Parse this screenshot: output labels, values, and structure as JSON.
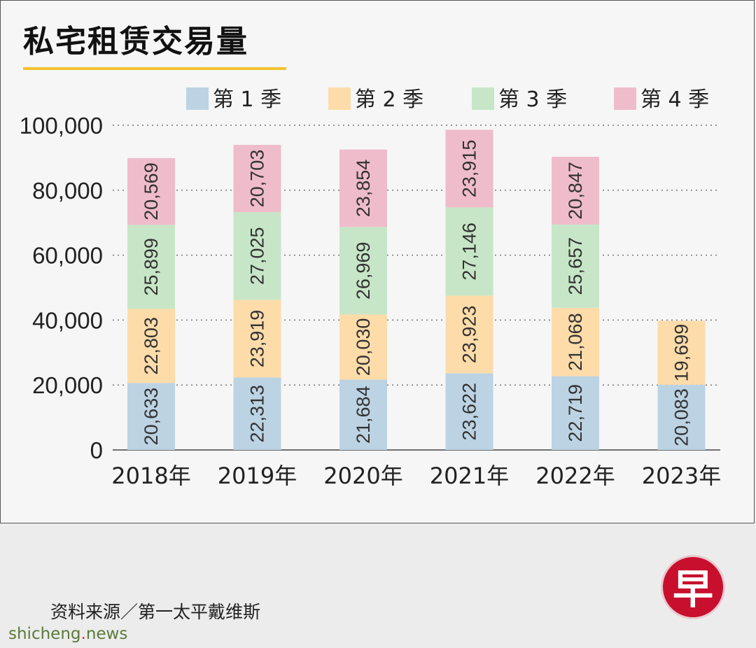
{
  "title": "私宅租赁交易量",
  "source": "资料来源／第一太平戴维斯",
  "logo_text": "早",
  "watermark": {
    "pre": "shicheng",
    "dot": ".",
    "post": "news"
  },
  "colors": {
    "q1": "#bcd3e3",
    "q2": "#fddcaa",
    "q3": "#c7e6c7",
    "q4": "#efbccb",
    "title_rule": "#f2c230",
    "logo": "#c8102e"
  },
  "chart_data": {
    "type": "bar",
    "stacked": true,
    "categories": [
      "2018年",
      "2019年",
      "2020年",
      "2021年",
      "2022年",
      "2023年"
    ],
    "series": [
      {
        "name": "第 1 季",
        "values": [
          20633,
          22313,
          21684,
          23622,
          22719,
          20083
        ],
        "labels": [
          "20,633",
          "22,313",
          "21,684",
          "23,622",
          "22,719",
          "20,083"
        ]
      },
      {
        "name": "第 2 季",
        "values": [
          22803,
          23919,
          20030,
          23923,
          21068,
          19699
        ],
        "labels": [
          "22,803",
          "23,919",
          "20,030",
          "23,923",
          "21,068",
          "19,699"
        ]
      },
      {
        "name": "第 3 季",
        "values": [
          25899,
          27025,
          26969,
          27146,
          25657,
          null
        ],
        "labels": [
          "25,899",
          "27,025",
          "26,969",
          "27,146",
          "25,657",
          ""
        ]
      },
      {
        "name": "第 4 季",
        "values": [
          20569,
          20703,
          23854,
          23915,
          20847,
          null
        ],
        "labels": [
          "20,569",
          "20,703",
          "23,854",
          "23,915",
          "20,847",
          ""
        ]
      }
    ],
    "ylim": [
      0,
      100000
    ],
    "yticks": [
      0,
      20000,
      40000,
      60000,
      80000,
      100000
    ],
    "ytick_labels": [
      "0",
      "20,000",
      "40,000",
      "60,000",
      "80,000",
      "100,000"
    ],
    "grid": true,
    "legend": "top"
  }
}
